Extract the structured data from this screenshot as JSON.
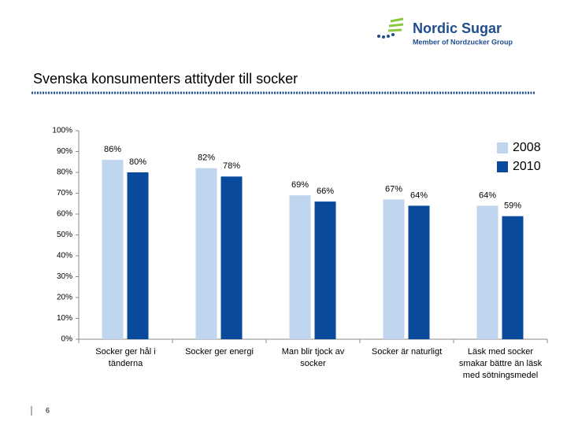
{
  "header": {
    "brand": "Nordic Sugar",
    "tagline": "Member of Nordzucker Group"
  },
  "page_number": "6",
  "chart_data": {
    "type": "bar",
    "title": "Svenska konsumenters attityder till socker",
    "categories": [
      "Socker ger hål i tänderna",
      "Socker ger energi",
      "Man blir tjock av socker",
      "Socker är naturligt",
      "Läsk med socker smakar bättre än läsk med sötningsmedel"
    ],
    "series": [
      {
        "name": "2008",
        "color": "#c0d5ee",
        "values": [
          86,
          82,
          69,
          67,
          64
        ],
        "value_labels": [
          "86%",
          "82%",
          "69%",
          "67%",
          "64%"
        ]
      },
      {
        "name": "2010",
        "color": "#0a4a9c",
        "values": [
          80,
          78,
          66,
          64,
          59
        ],
        "value_labels": [
          "80%",
          "78%",
          "66%",
          "64%",
          "59%"
        ]
      }
    ],
    "ylim": [
      0,
      100
    ],
    "yticks": [
      {
        "value": 0,
        "label": "0%"
      },
      {
        "value": 10,
        "label": "10%"
      },
      {
        "value": 20,
        "label": "20%"
      },
      {
        "value": 30,
        "label": "30%"
      },
      {
        "value": 40,
        "label": "40%"
      },
      {
        "value": 50,
        "label": "50%"
      },
      {
        "value": 60,
        "label": "60%"
      },
      {
        "value": 70,
        "label": "70%"
      },
      {
        "value": 80,
        "label": "80%"
      },
      {
        "value": 90,
        "label": "90%"
      },
      {
        "value": 100,
        "label": "100%"
      }
    ],
    "legend": "top-right"
  }
}
